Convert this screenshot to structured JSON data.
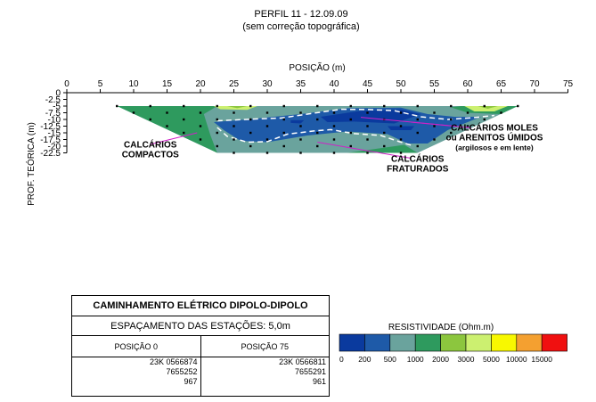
{
  "chart_data": {
    "type": "heatmap",
    "title": "PERFIL 11 - 12.09.09",
    "subtitle": "(sem correção topográfica)",
    "xlabel": "POSIÇÃO (m)",
    "ylabel": "PROF. TEÓRICA (m)",
    "xlim": [
      0,
      75
    ],
    "ylim": [
      0,
      -22.5
    ],
    "x_ticks": [
      "0",
      "5",
      "10",
      "15",
      "20",
      "25",
      "30",
      "35",
      "40",
      "45",
      "50",
      "55",
      "60",
      "65",
      "70",
      "75"
    ],
    "y_ticks": [
      "0",
      "-2.5",
      "-5",
      "-7.5",
      "-10",
      "-12.5",
      "-15",
      "-17.5",
      "-20",
      "-22.5"
    ],
    "section_polygon": [
      [
        7.5,
        -5
      ],
      [
        67.5,
        -5
      ],
      [
        52.5,
        -22.5
      ],
      [
        22.5,
        -22.5
      ]
    ],
    "zones": [
      {
        "color_index": 3,
        "points": [
          [
            7.5,
            -5
          ],
          [
            22.5,
            -5
          ],
          [
            20.5,
            -8
          ],
          [
            21,
            -12
          ],
          [
            21.5,
            -16
          ],
          [
            22.5,
            -22.5
          ]
        ]
      },
      {
        "color_index": 3,
        "points": [
          [
            42,
            -22.5
          ],
          [
            50.5,
            -19.5
          ],
          [
            52.5,
            -22.5
          ]
        ]
      },
      {
        "color_index": 3,
        "points": [
          [
            59,
            -5
          ],
          [
            67.5,
            -5
          ],
          [
            65,
            -8
          ],
          [
            60,
            -7.5
          ],
          [
            57.5,
            -5.5
          ]
        ]
      },
      {
        "color_index": 1,
        "points": [
          [
            27,
            -10
          ],
          [
            35,
            -8
          ],
          [
            42,
            -5.8
          ],
          [
            50,
            -5.6
          ],
          [
            54,
            -8
          ],
          [
            58,
            -9
          ],
          [
            62,
            -9
          ],
          [
            57,
            -14
          ],
          [
            54,
            -19
          ],
          [
            51,
            -19
          ],
          [
            48,
            -15.5
          ],
          [
            42,
            -14.5
          ],
          [
            36,
            -16
          ],
          [
            30,
            -18.5
          ],
          [
            26,
            -18
          ],
          [
            23.5,
            -14
          ],
          [
            22,
            -11
          ]
        ]
      },
      {
        "color_index": 0,
        "points": [
          [
            38,
            -9
          ],
          [
            44,
            -6.8
          ],
          [
            50,
            -6.3
          ],
          [
            53,
            -8
          ],
          [
            49,
            -11.5
          ],
          [
            43,
            -10.8
          ],
          [
            39,
            -11
          ]
        ]
      },
      {
        "color_index": 0,
        "points": [
          [
            33.5,
            -10.3
          ],
          [
            35.5,
            -10.3
          ],
          [
            35,
            -11.5
          ],
          [
            33.5,
            -11.3
          ]
        ]
      },
      {
        "color_index": 0,
        "points": [
          [
            48,
            -12.5
          ],
          [
            52,
            -12.5
          ],
          [
            51.5,
            -14
          ],
          [
            48.5,
            -14
          ]
        ]
      },
      {
        "color_index": 5,
        "points": [
          [
            22,
            -5
          ],
          [
            28.5,
            -5
          ],
          [
            27,
            -6.4
          ],
          [
            23,
            -6.2
          ]
        ]
      },
      {
        "color_index": 4,
        "points": [
          [
            24,
            -5
          ],
          [
            27,
            -5
          ],
          [
            25.5,
            -5.8
          ]
        ]
      },
      {
        "color_index": 5,
        "points": [
          [
            59.5,
            -5
          ],
          [
            66,
            -5
          ],
          [
            64,
            -7
          ],
          [
            61,
            -7
          ]
        ]
      },
      {
        "color_index": 4,
        "points": [
          [
            61.5,
            -5
          ],
          [
            64.5,
            -5
          ],
          [
            63,
            -6
          ]
        ]
      }
    ],
    "boundary_line": [
      [
        22.5,
        -10.5
      ],
      [
        28.5,
        -9.8
      ],
      [
        32,
        -9.5
      ],
      [
        36,
        -8
      ],
      [
        41,
        -6.2
      ],
      [
        45,
        -6.3
      ],
      [
        49,
        -6.7
      ],
      [
        53,
        -9
      ],
      [
        57,
        -10
      ],
      [
        61,
        -9.3
      ],
      [
        64,
        -8.5
      ]
    ],
    "boundary_line_2": [
      [
        22.5,
        -13
      ],
      [
        24,
        -16.3
      ],
      [
        27,
        -18.5
      ],
      [
        30,
        -18.3
      ],
      [
        33,
        -15.5
      ],
      [
        37,
        -14.3
      ],
      [
        39.5,
        -13.8
      ],
      [
        43,
        -15.3
      ],
      [
        47,
        -16
      ],
      [
        50,
        -18.5
      ],
      [
        52,
        -20
      ]
    ],
    "annotations": [
      {
        "text_lines": [
          "CALCÁRIOS MOLES",
          "ou ARENITOS ÚMIDOS"
        ],
        "sub_line": "(argilosos e em lente)",
        "x": 64,
        "y": -14.2,
        "pointer_from": [
          60.5,
          -13.1
        ],
        "pointers_to": [
          [
            44,
            -9.2
          ],
          [
            51.5,
            -11
          ]
        ]
      },
      {
        "text_lines": [
          "CALCÁRIOS",
          "COMPACTOS"
        ],
        "x": 12.5,
        "y": -20.5,
        "pointer_from": [
          12.5,
          -19.3
        ],
        "pointers_to": [
          [
            19.5,
            -15
          ]
        ]
      },
      {
        "text_lines": [
          "CALCÁRIOS",
          "FRATURADOS"
        ],
        "x": 52.5,
        "y": -25.8,
        "pointer_from": [
          51.5,
          -24.5
        ],
        "pointers_to": [
          [
            37.5,
            -18.5
          ]
        ]
      }
    ],
    "electrode_points": [
      [
        7.5,
        -5
      ],
      [
        12.5,
        -5
      ],
      [
        17.5,
        -5
      ],
      [
        22.5,
        -5
      ],
      [
        27.5,
        -5
      ],
      [
        32.5,
        -5
      ],
      [
        37.5,
        -5
      ],
      [
        42.5,
        -5
      ],
      [
        47.5,
        -5
      ],
      [
        52.5,
        -5
      ],
      [
        57.5,
        -5
      ],
      [
        62.5,
        -5
      ],
      [
        67.5,
        -5
      ],
      [
        10,
        -7.5
      ],
      [
        15,
        -7.5
      ],
      [
        20,
        -7.5
      ],
      [
        25,
        -7.5
      ],
      [
        30,
        -7.5
      ],
      [
        35,
        -7.5
      ],
      [
        40,
        -7.5
      ],
      [
        45,
        -7.5
      ],
      [
        50,
        -7.5
      ],
      [
        55,
        -7.5
      ],
      [
        60,
        -7.5
      ],
      [
        65,
        -7.5
      ],
      [
        12.5,
        -10
      ],
      [
        17.5,
        -10
      ],
      [
        22.5,
        -10
      ],
      [
        27.5,
        -10
      ],
      [
        32.5,
        -10
      ],
      [
        37.5,
        -10
      ],
      [
        42.5,
        -10
      ],
      [
        47.5,
        -10
      ],
      [
        52.5,
        -10
      ],
      [
        57.5,
        -10
      ],
      [
        62.5,
        -10
      ],
      [
        15,
        -12.5
      ],
      [
        20,
        -12.5
      ],
      [
        25,
        -12.5
      ],
      [
        30,
        -12.5
      ],
      [
        35,
        -12.5
      ],
      [
        40,
        -12.5
      ],
      [
        45,
        -12.5
      ],
      [
        50,
        -12.5
      ],
      [
        55,
        -12.5
      ],
      [
        60,
        -12.5
      ],
      [
        17.5,
        -15
      ],
      [
        22.5,
        -15
      ],
      [
        27.5,
        -15
      ],
      [
        32.5,
        -15
      ],
      [
        37.5,
        -15
      ],
      [
        42.5,
        -15
      ],
      [
        47.5,
        -15
      ],
      [
        52.5,
        -15
      ],
      [
        57.5,
        -15
      ],
      [
        20,
        -17.5
      ],
      [
        25,
        -17.5
      ],
      [
        30,
        -17.5
      ],
      [
        35,
        -17.5
      ],
      [
        40,
        -17.5
      ],
      [
        45,
        -17.5
      ],
      [
        50,
        -17.5
      ],
      [
        55,
        -17.5
      ],
      [
        22.5,
        -20
      ],
      [
        27.5,
        -20
      ],
      [
        32.5,
        -20
      ],
      [
        37.5,
        -20
      ],
      [
        42.5,
        -20
      ],
      [
        47.5,
        -20
      ],
      [
        52.5,
        -20
      ],
      [
        25,
        -22.5
      ],
      [
        30,
        -22.5
      ],
      [
        35,
        -22.5
      ],
      [
        40,
        -22.5
      ],
      [
        45,
        -22.5
      ],
      [
        50,
        -22.5
      ]
    ],
    "legend": {
      "title": "RESISTIVIDADE (Ohm.m)",
      "colors": [
        "#0a3a9e",
        "#1e5aa8",
        "#6aa39d",
        "#2e9a5e",
        "#8cc63e",
        "#ccf070",
        "#f8f800",
        "#f4a030",
        "#f01010"
      ],
      "labels": [
        "0",
        "200",
        "500",
        "1000",
        "2000",
        "3000",
        "5000",
        "10000",
        "15000"
      ]
    }
  },
  "info_box": {
    "title": "CAMINHAMENTO ELÉTRICO DIPOLO-DIPOLO",
    "spacing": "ESPAÇAMENTO DAS ESTAÇÕES: 5,0m",
    "left": {
      "header": "POSIÇÃO 0",
      "zone": "23K 0566874",
      "northing": "7655252",
      "elevation": "967"
    },
    "right": {
      "header": "POSIÇÃO 75",
      "zone": "23K 0566811",
      "northing": "7655291",
      "elevation": "961"
    }
  }
}
